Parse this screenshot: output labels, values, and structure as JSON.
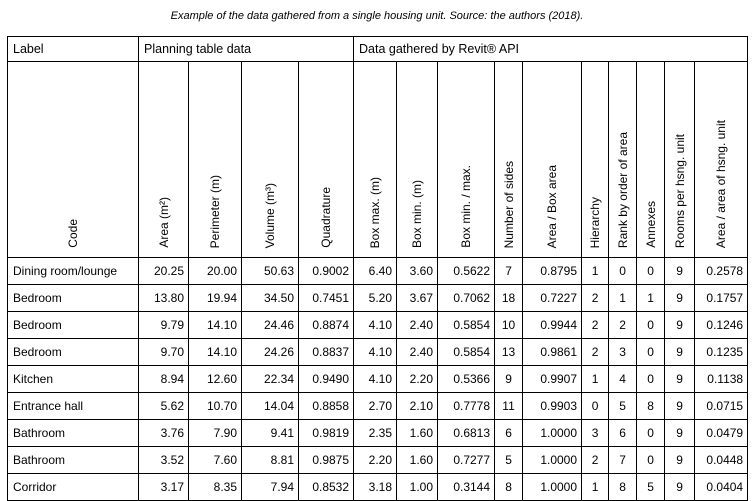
{
  "caption": "Example of the data gathered from a single housing unit. Source: the authors (2018).",
  "groups": {
    "label": "Label",
    "planning": "Planning table data",
    "revit": "Data gathered by Revit® API"
  },
  "columns": [
    "Code",
    "Area (m²)",
    "Perimeter (m)",
    "Volume (m³)",
    "Quadrature",
    "Box max. (m)",
    "Box min. (m)",
    "Box min. / max.",
    "Number of sides",
    "Area / Box area",
    "Hierarchy",
    "Rank by order of area",
    "Annexes",
    "Rooms per hsng. unit",
    "Area / area of hsng. unit"
  ],
  "rows": [
    [
      "Dining room/lounge",
      "20.25",
      "20.00",
      "50.63",
      "0.9002",
      "6.40",
      "3.60",
      "0.5622",
      "7",
      "0.8795",
      "1",
      "0",
      "0",
      "9",
      "0.2578"
    ],
    [
      "Bedroom",
      "13.80",
      "19.94",
      "34.50",
      "0.7451",
      "5.20",
      "3.67",
      "0.7062",
      "18",
      "0.7227",
      "2",
      "1",
      "1",
      "9",
      "0.1757"
    ],
    [
      "Bedroom",
      "9.79",
      "14.10",
      "24.46",
      "0.8874",
      "4.10",
      "2.40",
      "0.5854",
      "10",
      "0.9944",
      "2",
      "2",
      "0",
      "9",
      "0.1246"
    ],
    [
      "Bedroom",
      "9.70",
      "14.10",
      "24.26",
      "0.8837",
      "4.10",
      "2.40",
      "0.5854",
      "13",
      "0.9861",
      "2",
      "3",
      "0",
      "9",
      "0.1235"
    ],
    [
      "Kitchen",
      "8.94",
      "12.60",
      "22.34",
      "0.9490",
      "4.10",
      "2.20",
      "0.5366",
      "9",
      "0.9907",
      "1",
      "4",
      "0",
      "9",
      "0.1138"
    ],
    [
      "Entrance hall",
      "5.62",
      "10.70",
      "14.04",
      "0.8858",
      "2.70",
      "2.10",
      "0.7778",
      "11",
      "0.9903",
      "0",
      "5",
      "8",
      "9",
      "0.0715"
    ],
    [
      "Bathroom",
      "3.76",
      "7.90",
      "9.41",
      "0.9819",
      "2.35",
      "1.60",
      "0.6813",
      "6",
      "1.0000",
      "3",
      "6",
      "0",
      "9",
      "0.0479"
    ],
    [
      "Bathroom",
      "3.52",
      "7.60",
      "8.81",
      "0.9875",
      "2.20",
      "1.60",
      "0.7277",
      "5",
      "1.0000",
      "2",
      "7",
      "0",
      "9",
      "0.0448"
    ],
    [
      "Corridor",
      "3.17",
      "8.35",
      "7.94",
      "0.8532",
      "3.18",
      "1.00",
      "0.3144",
      "8",
      "1.0000",
      "1",
      "8",
      "5",
      "9",
      "0.0404"
    ]
  ]
}
